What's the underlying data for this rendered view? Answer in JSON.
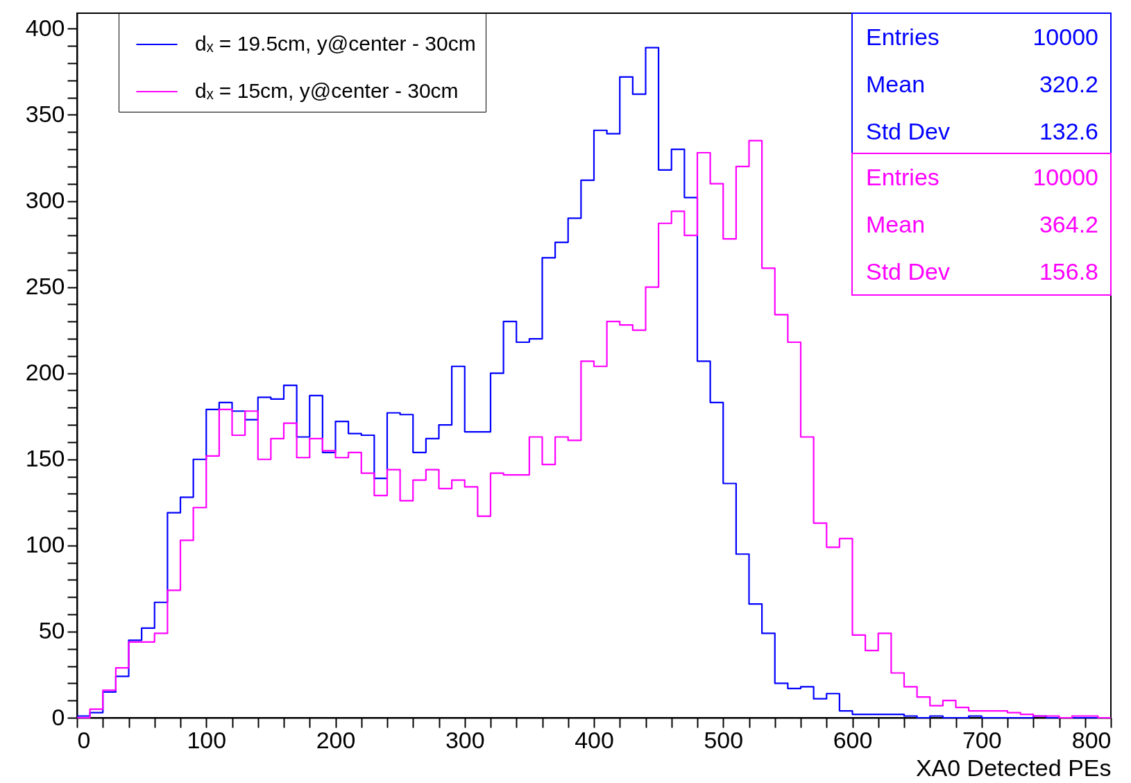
{
  "chart_data": {
    "type": "histogram",
    "xlabel": "XA0 Detected PEs",
    "bins": [
      0,
      10,
      20,
      30,
      40,
      50,
      60,
      70,
      80,
      90,
      100,
      110,
      120,
      130,
      140,
      150,
      160,
      170,
      180,
      190,
      200,
      210,
      220,
      230,
      240,
      250,
      260,
      270,
      280,
      290,
      300,
      310,
      320,
      330,
      340,
      350,
      360,
      370,
      380,
      390,
      400,
      410,
      420,
      430,
      440,
      450,
      460,
      470,
      480,
      490,
      500,
      510,
      520,
      530,
      540,
      550,
      560,
      570,
      580,
      590,
      600,
      610,
      620,
      630,
      640,
      650,
      660,
      670,
      680,
      690,
      700,
      710,
      720,
      730,
      740,
      750,
      760,
      770,
      780,
      790,
      800
    ],
    "series": [
      {
        "name": "dₓ = 19.5cm, y@center - 30cm",
        "color": "#0000ff",
        "values": [
          1,
          3,
          15,
          24,
          45,
          52,
          67,
          119,
          128,
          150,
          179,
          183,
          178,
          173,
          186,
          185,
          193,
          163,
          187,
          154,
          172,
          165,
          164,
          139,
          177,
          176,
          154,
          162,
          170,
          204,
          166,
          166,
          200,
          230,
          218,
          220,
          267,
          276,
          290,
          312,
          341,
          339,
          372,
          362,
          389,
          318,
          330,
          302,
          207,
          183,
          136,
          95,
          66,
          49,
          20,
          17,
          18,
          11,
          14,
          4,
          2,
          2,
          2,
          2,
          1,
          0,
          1,
          0,
          0,
          1,
          0,
          0,
          0,
          0,
          1,
          0,
          0,
          0,
          0,
          0
        ]
      },
      {
        "name": "dₓ = 15cm, y@center - 30cm",
        "color": "#ff00ff",
        "values": [
          0,
          5,
          16,
          29,
          44,
          44,
          49,
          74,
          103,
          122,
          152,
          179,
          164,
          178,
          150,
          162,
          171,
          151,
          162,
          155,
          151,
          154,
          142,
          129,
          144,
          126,
          138,
          144,
          133,
          138,
          134,
          117,
          142,
          141,
          141,
          163,
          147,
          163,
          161,
          207,
          204,
          230,
          228,
          225,
          250,
          287,
          294,
          280,
          328,
          310,
          278,
          320,
          335,
          261,
          234,
          218,
          163,
          113,
          99,
          104,
          48,
          39,
          49,
          26,
          18,
          12,
          7,
          10,
          6,
          4,
          4,
          4,
          3,
          2,
          1,
          1,
          0,
          1,
          1,
          0
        ]
      }
    ],
    "xlim": [
      0,
      800
    ],
    "xticks": [
      0,
      {
        "value": 20,
        "label": null
      },
      {
        "value": 40,
        "label": null
      },
      {
        "value": 60,
        "label": null
      },
      {
        "value": 80,
        "label": null
      },
      100,
      {
        "value": 120,
        "label": null
      },
      {
        "value": 140,
        "label": null
      },
      {
        "value": 160,
        "label": null
      },
      {
        "value": 180,
        "label": null
      },
      200,
      {
        "value": 220,
        "label": null
      },
      {
        "value": 240,
        "label": null
      },
      {
        "value": 260,
        "label": null
      },
      {
        "value": 280,
        "label": null
      },
      300,
      {
        "value": 320,
        "label": null
      },
      {
        "value": 340,
        "label": null
      },
      {
        "value": 360,
        "label": null
      },
      {
        "value": 380,
        "label": null
      },
      400,
      {
        "value": 420,
        "label": null
      },
      {
        "value": 440,
        "label": null
      },
      {
        "value": 460,
        "label": null
      },
      {
        "value": 480,
        "label": null
      },
      500,
      {
        "value": 520,
        "label": null
      },
      {
        "value": 540,
        "label": null
      },
      {
        "value": 560,
        "label": null
      },
      {
        "value": 580,
        "label": null
      },
      600,
      {
        "value": 620,
        "label": null
      },
      {
        "value": 640,
        "label": null
      },
      {
        "value": 660,
        "label": null
      },
      {
        "value": 680,
        "label": null
      },
      700,
      {
        "value": 720,
        "label": null
      },
      {
        "value": 740,
        "label": null
      },
      {
        "value": 760,
        "label": null
      },
      {
        "value": 780,
        "label": null
      },
      800
    ],
    "ylim": [
      0,
      409
    ],
    "yticks": [
      0,
      {
        "value": 10,
        "label": null
      },
      {
        "value": 20,
        "label": null
      },
      {
        "value": 30,
        "label": null
      },
      {
        "value": 40,
        "label": null
      },
      50,
      {
        "value": 60,
        "label": null
      },
      {
        "value": 70,
        "label": null
      },
      {
        "value": 80,
        "label": null
      },
      {
        "value": 90,
        "label": null
      },
      100,
      {
        "value": 110,
        "label": null
      },
      {
        "value": 120,
        "label": null
      },
      {
        "value": 130,
        "label": null
      },
      {
        "value": 140,
        "label": null
      },
      150,
      {
        "value": 160,
        "label": null
      },
      {
        "value": 170,
        "label": null
      },
      {
        "value": 180,
        "label": null
      },
      {
        "value": 190,
        "label": null
      },
      200,
      {
        "value": 210,
        "label": null
      },
      {
        "value": 220,
        "label": null
      },
      {
        "value": 230,
        "label": null
      },
      {
        "value": 240,
        "label": null
      },
      250,
      {
        "value": 260,
        "label": null
      },
      {
        "value": 270,
        "label": null
      },
      {
        "value": 280,
        "label": null
      },
      {
        "value": 290,
        "label": null
      },
      300,
      {
        "value": 310,
        "label": null
      },
      {
        "value": 320,
        "label": null
      },
      {
        "value": 330,
        "label": null
      },
      {
        "value": 340,
        "label": null
      },
      350,
      {
        "value": 360,
        "label": null
      },
      {
        "value": 370,
        "label": null
      },
      {
        "value": 380,
        "label": null
      },
      {
        "value": 390,
        "label": null
      },
      400
    ],
    "grid": false,
    "legend": "top left",
    "line_style": "solid",
    "annotations": [
      "Entries 10000",
      "Mean 320.2",
      "Std Dev 132.6",
      "Entries 10000",
      "Mean 364.2",
      "Std Dev 156.8"
    ]
  }
}
